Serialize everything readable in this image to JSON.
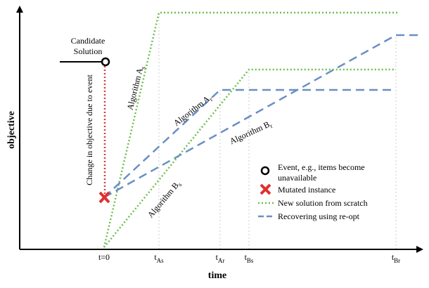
{
  "axes": {
    "y_label": "objective",
    "x_label": "time"
  },
  "ticks": [
    {
      "base": "t=0",
      "sub": ""
    },
    {
      "base": "t",
      "sub": "As"
    },
    {
      "base": "t",
      "sub": "Ar"
    },
    {
      "base": "t",
      "sub": "Bs"
    },
    {
      "base": "t",
      "sub": "Br"
    }
  ],
  "annotations": {
    "candidate_line1": "Candidate",
    "candidate_line2": "Solution",
    "change": "Change in objective due to event"
  },
  "curve_labels": [
    {
      "base": "Algorithm A",
      "sub": "s"
    },
    {
      "base": "Algorithm A",
      "sub": "r"
    },
    {
      "base": "Algorithm B",
      "sub": "r"
    },
    {
      "base": "Algorithm B",
      "sub": "s"
    }
  ],
  "legend": {
    "event_line1": "Event, e.g., items become",
    "event_line2": "unavailable",
    "mutated": "Mutated instance",
    "scratch": "New solution from scratch",
    "reopt": "Recovering using re-opt"
  }
}
